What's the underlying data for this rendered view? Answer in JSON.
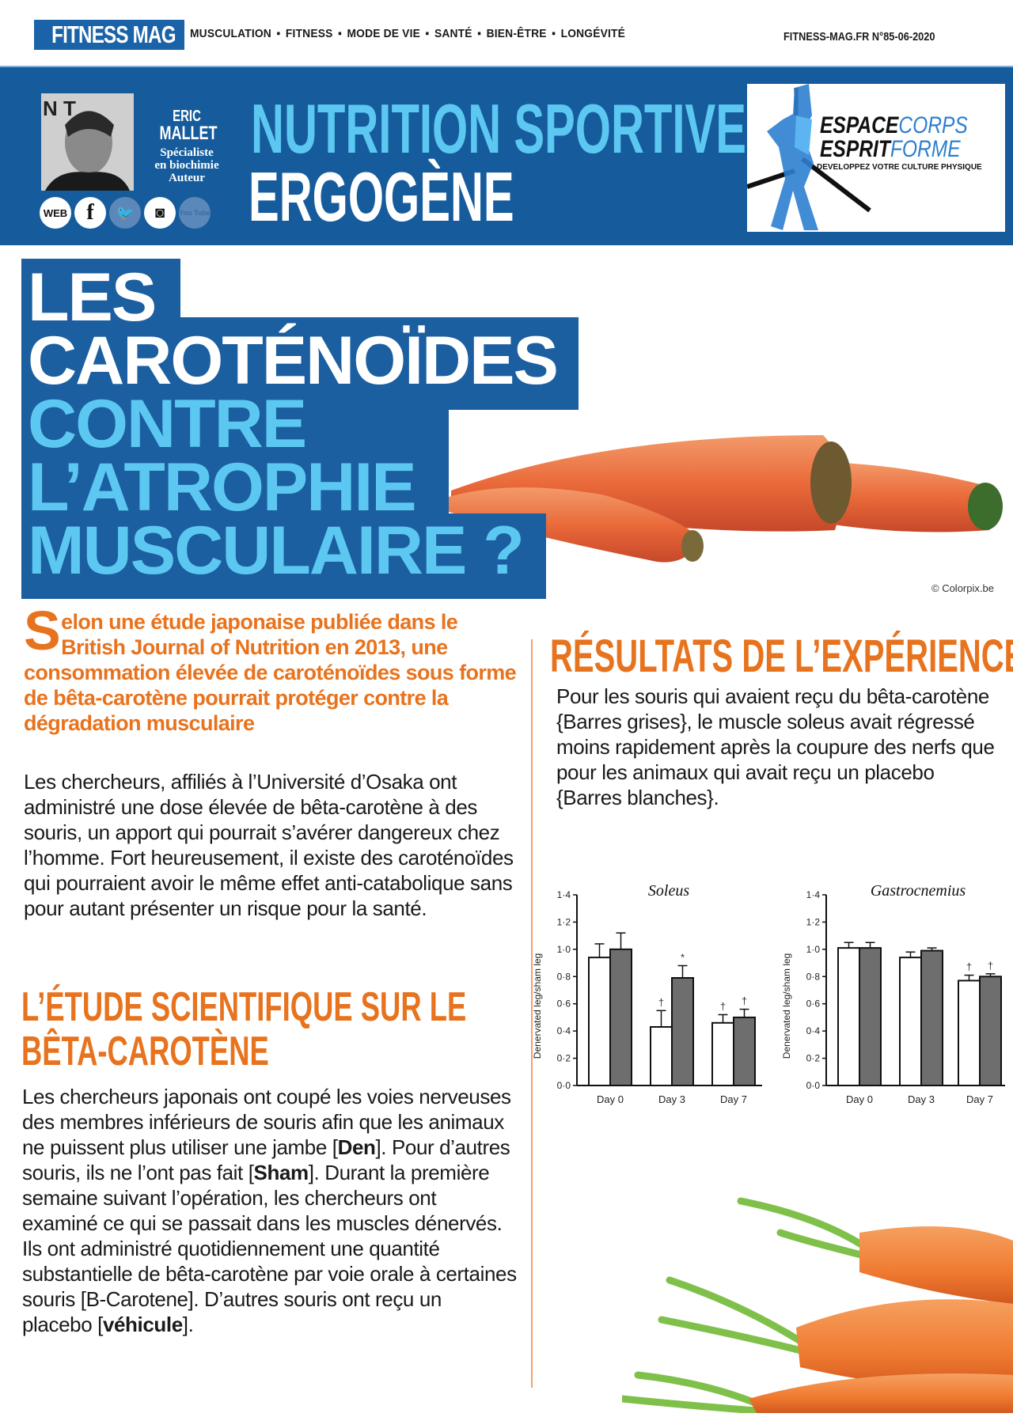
{
  "header": {
    "logo": "FITNESS MAG",
    "nav": [
      "MUSCULATION",
      "FITNESS",
      "MODE DE VIE",
      "SANTÉ",
      "BIEN-ÊTRE",
      "LONGÉVITÉ"
    ],
    "issue": "FITNESS-MAG.FR  N°85-06-2020"
  },
  "author": {
    "first": "ERIC",
    "last": "MALLET",
    "roles": [
      "Spécialiste",
      "en biochimie",
      "Auteur"
    ],
    "social": [
      {
        "label": "WEB",
        "icon": "web-icon"
      },
      {
        "label": "f",
        "icon": "facebook-icon"
      },
      {
        "label": "🐦",
        "icon": "twitter-icon"
      },
      {
        "label": "◙",
        "icon": "instagram-icon"
      },
      {
        "label": "You Tube",
        "icon": "youtube-icon"
      }
    ]
  },
  "rubric": {
    "line1": "NUTRITION SPORTIVE",
    "line2": "ERGOGÈNE"
  },
  "brand_logo": {
    "w1": "ESPACE",
    "w2": "CORPS",
    "w3": "ESPRIT",
    "w4": "FORME",
    "tagline": "DEVELOPPEZ VOTRE CULTURE PHYSIQUE"
  },
  "title": {
    "l1": "LES",
    "l2": "CAROTÉNOÏDES",
    "l3": "CONTRE",
    "l4": "L’ATROPHIE",
    "l5": "MUSCULAIRE ?"
  },
  "photo_credit": "© Colorpix.be",
  "colors": {
    "blue": "#165c9d",
    "light_blue": "#5cc8f2",
    "orange": "#e8731e"
  },
  "left": {
    "lead_drop": "S",
    "lead": "elon une étude japonaise publiée dans le British Journal of Nutrition en 2013, une consommation élevée de caroténoïdes sous forme de bêta-carotène pourrait protéger contre la dégradation musculaire",
    "p1": "Les chercheurs, affiliés à l’Université d’Osaka ont administré une dose élevée de bêta-carotène à des souris, un apport qui pourrait s’avérer dangereux chez l’homme. Fort heureusement, il existe des caroténoïdes qui pourraient avoir le même effet anti-catabolique sans pour autant présenter un risque pour la santé.",
    "h2a": "L’ÉTUDE SCIENTIFIQUE SUR LE",
    "h2b": "BÊTA-CAROTÈNE",
    "p2": [
      {
        "t": "Les chercheurs japonais ont coupé les voies nerveuses des membres inférieurs de souris afin que les animaux ne puissent plus utiliser une jambe [",
        "b": false
      },
      {
        "t": "Den",
        "b": true
      },
      {
        "t": "]. Pour d’autres souris, ils ne l’ont pas fait [",
        "b": false
      },
      {
        "t": "Sham",
        "b": true
      },
      {
        "t": "]. Durant la première semaine suivant l’opération, les chercheurs ont examiné ce qui se passait dans les muscles dénervés. Ils ont administré quotidiennement une quantité substantielle de bêta-carotène par voie orale à certaines souris [B-Carotene]. D’autres souris ont reçu un placebo [",
        "b": false
      },
      {
        "t": "véhicule",
        "b": true
      },
      {
        "t": "].",
        "b": false
      }
    ]
  },
  "right": {
    "h2": "RÉSULTATS DE L’EXPÉRIENCE",
    "p": "Pour les souris qui avaient reçu du bêta-carotène {Barres grises}, le muscle soleus avait régressé moins rapidement après la coupure des nerfs que pour les animaux qui avait reçu un placebo {Barres blanches}."
  },
  "chart_data": [
    {
      "type": "bar",
      "title": "Soleus",
      "ylabel": "Denervated leg/sham leg",
      "categories": [
        "Day 0",
        "Day 3",
        "Day 7"
      ],
      "ylim": [
        0,
        1.4
      ],
      "yticks": [
        "0·0",
        "0·2",
        "0·4",
        "0·6",
        "0·8",
        "1·0",
        "1·2",
        "1·4"
      ],
      "series": [
        {
          "color": "#ffffff",
          "values": [
            0.94,
            0.43,
            0.46
          ],
          "errors": [
            0.1,
            0.12,
            0.06
          ],
          "marks": [
            "",
            "†",
            "†"
          ]
        },
        {
          "color": "#6e6e6e",
          "values": [
            1.0,
            0.79,
            0.5
          ],
          "errors": [
            0.12,
            0.09,
            0.06
          ],
          "marks": [
            "",
            "*",
            "†"
          ]
        }
      ]
    },
    {
      "type": "bar",
      "title": "Gastrocnemius",
      "ylabel": "Denervated leg/sham leg",
      "categories": [
        "Day 0",
        "Day 3",
        "Day 7"
      ],
      "ylim": [
        0,
        1.4
      ],
      "yticks": [
        "0·0",
        "0·2",
        "0·4",
        "0·6",
        "0·8",
        "1·0",
        "1·2",
        "1·4"
      ],
      "series": [
        {
          "color": "#ffffff",
          "values": [
            1.01,
            0.94,
            0.77
          ],
          "errors": [
            0.04,
            0.04,
            0.04
          ],
          "marks": [
            "",
            "",
            "†"
          ]
        },
        {
          "color": "#6e6e6e",
          "values": [
            1.01,
            0.99,
            0.8
          ],
          "errors": [
            0.04,
            0.02,
            0.02
          ],
          "marks": [
            "",
            "",
            "†"
          ]
        }
      ]
    }
  ]
}
